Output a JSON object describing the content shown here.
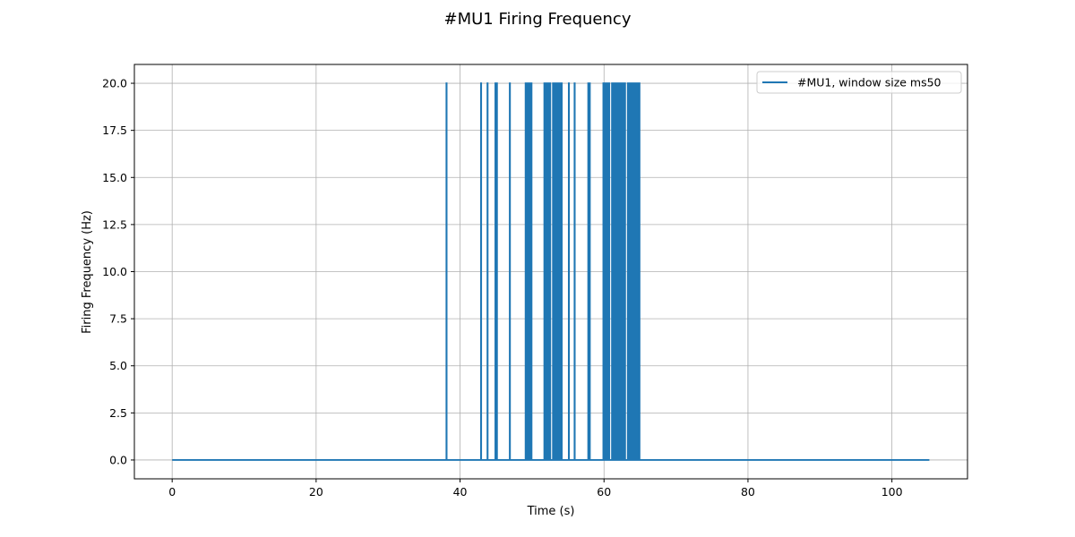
{
  "chart_data": {
    "type": "line",
    "title": "#MU1 Firing Frequency",
    "xlabel": "Time (s)",
    "ylabel": "Firing Frequency (Hz)",
    "xlim": [
      -5.25,
      110.5
    ],
    "ylim": [
      -1.0,
      21.0
    ],
    "xticks": [
      0,
      20,
      40,
      60,
      80,
      100
    ],
    "yticks": [
      0.0,
      2.5,
      5.0,
      7.5,
      10.0,
      12.5,
      15.0,
      17.5,
      20.0
    ],
    "xtick_labels": [
      "0",
      "20",
      "40",
      "60",
      "80",
      "100"
    ],
    "ytick_labels": [
      "0.0",
      "2.5",
      "5.0",
      "7.5",
      "10.0",
      "12.5",
      "15.0",
      "17.5",
      "20.0"
    ],
    "grid": true,
    "legend_position": "upper-right",
    "series": [
      {
        "name": "#MU1, window size ms50",
        "color": "#1f77b4",
        "baseline": 0,
        "peak": 20,
        "x_start": 0,
        "x_end": 105.2,
        "spike_times": [
          38.1,
          42.9,
          43.8,
          44.9,
          45.1,
          46.9,
          49.1,
          49.3,
          49.5,
          49.7,
          49.9,
          51.7,
          51.9,
          52.1,
          52.3,
          52.5,
          52.9,
          53.1,
          53.3,
          53.5,
          53.7,
          53.9,
          54.1,
          55.1,
          55.9,
          57.8,
          58.0,
          59.9,
          60.1,
          60.3,
          60.5,
          60.7,
          61.1,
          61.3,
          61.5,
          61.7,
          61.9,
          62.1,
          62.3,
          62.5,
          62.7,
          62.9,
          63.3,
          63.5,
          63.7,
          63.9,
          64.1,
          64.3,
          64.5,
          64.7,
          64.9
        ]
      }
    ]
  }
}
